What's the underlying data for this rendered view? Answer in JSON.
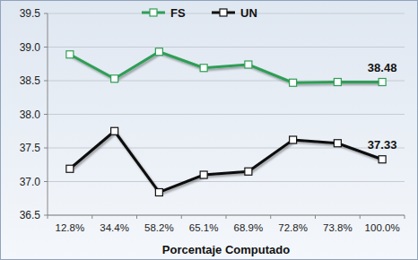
{
  "chart_data": {
    "type": "line",
    "x_label": "Porcentaje Computado",
    "categories": [
      "12.8%",
      "34.4%",
      "58.2%",
      "65.1%",
      "68.9%",
      "72.8%",
      "73.8%",
      "100.0%"
    ],
    "series": [
      {
        "name": "FS",
        "color": "#2f9e55",
        "marker": "square",
        "values": [
          38.89,
          38.53,
          38.93,
          38.69,
          38.74,
          38.47,
          38.48,
          38.48
        ],
        "value_labels": [
          null,
          null,
          null,
          null,
          null,
          null,
          null,
          "38.48"
        ]
      },
      {
        "name": "UN",
        "color": "#111111",
        "marker": "square",
        "values": [
          37.19,
          37.75,
          36.84,
          37.1,
          37.15,
          37.62,
          37.57,
          37.33
        ],
        "value_labels": [
          null,
          null,
          null,
          null,
          null,
          null,
          null,
          "37.33"
        ]
      }
    ],
    "ylim": [
      36.5,
      39.5
    ],
    "yticks": [
      36.5,
      {
        "value": 37,
        "label": "37.0"
      },
      37.5,
      {
        "value": 38,
        "label": "38.0"
      },
      38.5,
      {
        "value": 39,
        "label": "39.0"
      },
      39.5
    ],
    "grid": true,
    "legend": "top"
  }
}
